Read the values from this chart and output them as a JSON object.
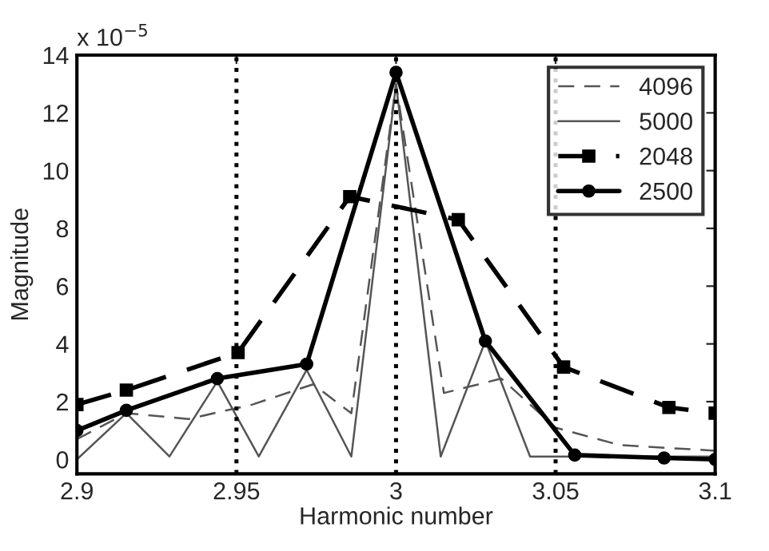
{
  "chart_data": {
    "type": "line",
    "xlabel": "Harmonic number",
    "ylabel": "Magnitude",
    "annotations": [
      "x 10$^{−5}$"
    ],
    "xlim": [
      2.9,
      3.1
    ],
    "xticks": [
      2.9,
      2.95,
      3,
      3.05,
      3.1
    ],
    "ylim": [
      -0.5,
      14
    ],
    "yticks": [
      0,
      2,
      4,
      6,
      8,
      10,
      12,
      14
    ],
    "grid": false,
    "legend": "top right",
    "ref_lines": [
      {
        "axis": "x",
        "value": 2.95,
        "line_style": "dotted",
        "color": "#000000"
      },
      {
        "axis": "x",
        "value": 3.0,
        "line_style": "dotted",
        "color": "#000000"
      },
      {
        "axis": "x",
        "value": 3.05,
        "line_style": "dotted",
        "color": "#000000"
      }
    ],
    "series": [
      {
        "name": "4096",
        "color": "#555555",
        "line_style": "dashed",
        "marker": "none",
        "x": [
          2.9,
          2.9155,
          2.935,
          2.955,
          2.974,
          2.986,
          3.0,
          3.015,
          3.033,
          3.05,
          3.07,
          3.1
        ],
        "values": [
          0.7,
          1.6,
          1.4,
          1.9,
          2.6,
          1.6,
          13.0,
          2.3,
          2.8,
          1.1,
          0.5,
          0.3
        ]
      },
      {
        "name": "5000",
        "color": "#555555",
        "line_style": "solid",
        "marker": "none",
        "x": [
          2.9,
          2.9155,
          2.929,
          2.944,
          2.957,
          2.972,
          2.986,
          3.0,
          3.014,
          3.028,
          3.042,
          3.1
        ],
        "values": [
          0.0,
          1.6,
          0.1,
          2.7,
          0.1,
          3.1,
          0.1,
          13.0,
          0.1,
          4.1,
          0.1,
          0.1
        ]
      },
      {
        "name": "2048",
        "color": "#000000",
        "line_style": "dashed",
        "marker": "square",
        "x": [
          2.9,
          2.9155,
          2.9505,
          2.9855,
          3.0195,
          3.0525,
          3.0855,
          3.1
        ],
        "values": [
          1.9,
          2.4,
          3.7,
          9.1,
          8.3,
          3.2,
          1.8,
          1.6
        ]
      },
      {
        "name": "2500",
        "color": "#000000",
        "line_style": "solid",
        "marker": "circle",
        "x": [
          2.9,
          2.9155,
          2.944,
          2.972,
          3.0,
          3.028,
          3.056,
          3.084,
          3.1
        ],
        "values": [
          1.0,
          1.7,
          2.8,
          3.3,
          13.4,
          4.1,
          0.15,
          0.05,
          0.0
        ]
      }
    ]
  }
}
